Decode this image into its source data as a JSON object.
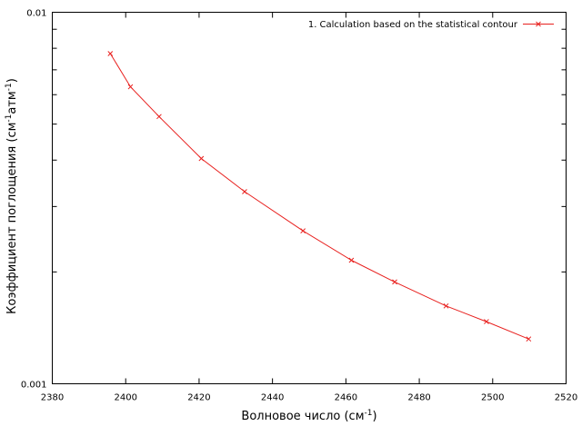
{
  "chart_data": {
    "type": "line",
    "title": "",
    "xlabel": "Волновое число (см",
    "xlabel_sup": "-1",
    "xlabel_end": ")",
    "ylabel": {
      "p1": "Коэффициент поглощения (см",
      "s1": "-1",
      "p2": "атм",
      "s2": "-1",
      "p3": ")"
    },
    "xlim": [
      2380,
      2520
    ],
    "ylim": [
      0.001,
      0.01
    ],
    "y_scale": "log",
    "x_ticks": [
      2380,
      2400,
      2420,
      2440,
      2460,
      2480,
      2500,
      2520
    ],
    "x_tick_labels": [
      "2380",
      "2400",
      "2420",
      "2440",
      "2460",
      "2480",
      "2500",
      "2520"
    ],
    "y_major_ticks": [
      0.001,
      0.01
    ],
    "y_tick_labels": [
      "0.001",
      "0.01"
    ],
    "y_minor_ticks": [
      0.002,
      0.003,
      0.004,
      0.005,
      0.006,
      0.007,
      0.008,
      0.009
    ],
    "grid": false,
    "legend_position": "top-right",
    "series": [
      {
        "name": "1. Calculation based on the statistical contour",
        "color": "#e8201e",
        "marker": "x",
        "x": [
          2395.8,
          2401.3,
          2409.1,
          2420.6,
          2432.4,
          2448.3,
          2461.5,
          2473.3,
          2487.3,
          2498.3,
          2509.8
        ],
        "y": [
          0.00774,
          0.0063,
          0.00524,
          0.00404,
          0.00329,
          0.00258,
          0.00215,
          0.00188,
          0.00162,
          0.00147,
          0.00132
        ]
      }
    ]
  }
}
